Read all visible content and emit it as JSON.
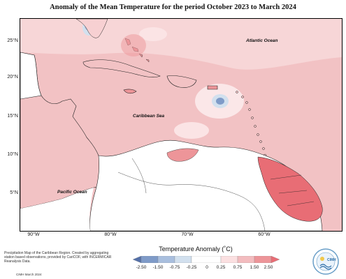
{
  "title": "Anomaly of the Mean Temperature for the period October 2023 to March 2024",
  "map": {
    "y_ticks": [
      "25°N",
      "20°N",
      "15°N",
      "10°N",
      "5°N"
    ],
    "x_ticks": [
      "90°W",
      "80°W",
      "70°W",
      "60°W"
    ],
    "ocean_labels": {
      "atlantic": "Atlantic Ocean",
      "caribbean": "Caribbean Sea",
      "pacific": "Pacific Ocean"
    }
  },
  "legend": {
    "title": "Temperature Anomaly (˚C)",
    "ticks": [
      "-2.50",
      "-1.50",
      "-0.75",
      "-0.25",
      "0",
      "0.25",
      "0.75",
      "1.50",
      "2.50"
    ],
    "colors": [
      "#5470a8",
      "#7f9bc8",
      "#a9bfde",
      "#d2e0ee",
      "#ffffff",
      "#fbe0e1",
      "#f3bcbf",
      "#ed9599",
      "#e86d75"
    ]
  },
  "footnote": "Precipitation Map of the Caribbean Region. Created by aggregating station based observations, provided by CariCOF, with INCERMICAR Reanalysis Data.",
  "credit": "CIMH March 2024",
  "logo_text": "CIMH"
}
